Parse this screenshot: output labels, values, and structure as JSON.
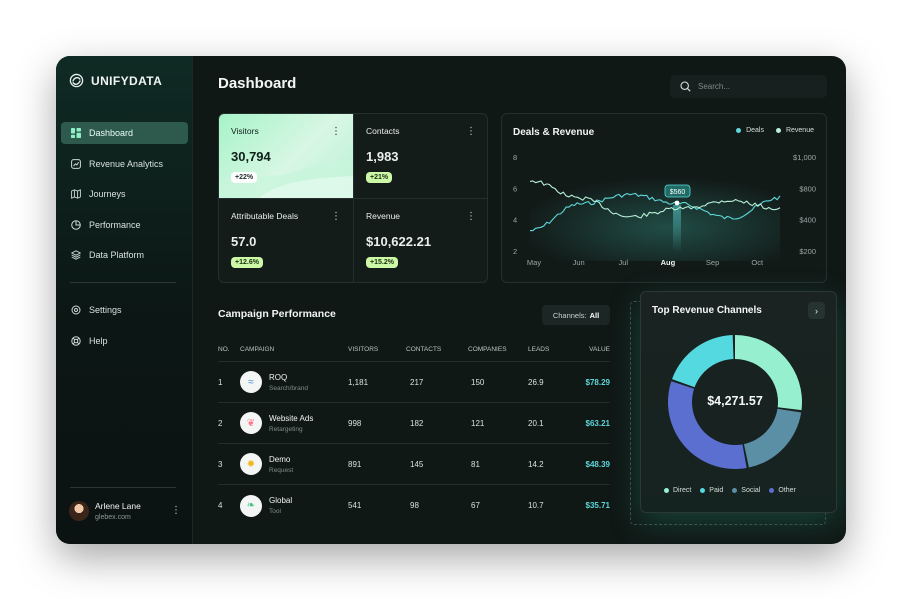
{
  "brand": {
    "name": "UNIFYDATA",
    "logo_icon": "knot-logo-icon"
  },
  "sidebar": {
    "nav": [
      {
        "label": "Dashboard",
        "icon": "grid-icon",
        "active": true
      },
      {
        "label": "Revenue Analytics",
        "icon": "chart-icon",
        "active": false
      },
      {
        "label": "Journeys",
        "icon": "map-icon",
        "active": false
      },
      {
        "label": "Performance",
        "icon": "pie-icon",
        "active": false
      },
      {
        "label": "Data Platform",
        "icon": "layers-icon",
        "active": false
      }
    ],
    "secondary": [
      {
        "label": "Settings",
        "icon": "gear-icon"
      },
      {
        "label": "Help",
        "icon": "help-icon"
      }
    ],
    "user": {
      "name": "Arlene Lane",
      "email": "glebex.com"
    }
  },
  "header": {
    "title": "Dashboard",
    "search_placeholder": "Search..."
  },
  "stats": [
    {
      "label": "Visitors",
      "value": "30,794",
      "badge": "+22%"
    },
    {
      "label": "Contacts",
      "value": "1,983",
      "badge": "+21%"
    },
    {
      "label": "Attributable Deals",
      "value": "57.0",
      "badge": "+12.6%"
    },
    {
      "label": "Revenue",
      "value": "$10,622.21",
      "badge": "+15.2%"
    }
  ],
  "deals_chart": {
    "title": "Deals & Revenue",
    "legend": {
      "deals": "Deals",
      "revenue": "Revenue"
    },
    "colors": {
      "deals": "#5ed8dc",
      "revenue": "#b8f0d8"
    },
    "y_left_ticks": [
      "8",
      "6",
      "4",
      "2"
    ],
    "y_right_ticks": [
      "$1,000",
      "$800",
      "$400",
      "$200"
    ],
    "x_ticks": [
      "May",
      "Jun",
      "Jul",
      "Aug",
      "Sep",
      "Oct"
    ],
    "highlight_label": "$560"
  },
  "chart_data": {
    "type": "line",
    "title": "Deals & Revenue",
    "x": [
      "May",
      "Jun",
      "Jul",
      "Aug",
      "Sep",
      "Oct"
    ],
    "series": [
      {
        "name": "Deals",
        "values": [
          3.3,
          5.0,
          5.6,
          5.0,
          4.1,
          5.4
        ]
      },
      {
        "name": "Revenue",
        "values": [
          800,
          650,
          490,
          560,
          630,
          560
        ]
      }
    ],
    "ylim_left": [
      2,
      8
    ],
    "ylim_right": [
      200,
      1000
    ]
  },
  "campaign": {
    "title": "Campaign Performance",
    "filter_label": "Channels:",
    "filter_value": "All",
    "columns": [
      "NO.",
      "CAMPAIGN",
      "VISITORS",
      "CONTACTS",
      "COMPANIES",
      "LEADS",
      "VALUE"
    ],
    "rows": [
      {
        "no": "1",
        "name": "ROQ",
        "sub": "Search/brand",
        "visitors": "1,181",
        "contacts": "217",
        "companies": "150",
        "leads": "26.9",
        "value": "$78.29",
        "logo_color": "#3d8bd9",
        "logo_glyph": "≈"
      },
      {
        "no": "2",
        "name": "Website Ads",
        "sub": "Retargeting",
        "visitors": "998",
        "contacts": "182",
        "companies": "121",
        "leads": "20.1",
        "value": "$63.21",
        "logo_color": "#ff7a8a",
        "logo_glyph": "❦"
      },
      {
        "no": "3",
        "name": "Demo",
        "sub": "Request",
        "visitors": "891",
        "contacts": "145",
        "companies": "81",
        "leads": "14.2",
        "value": "$48.39",
        "logo_color": "#f5b521",
        "logo_glyph": "✹"
      },
      {
        "no": "4",
        "name": "Global",
        "sub": "Tool",
        "visitors": "541",
        "contacts": "98",
        "companies": "67",
        "leads": "10.7",
        "value": "$35.71",
        "logo_color": "#3cc27a",
        "logo_glyph": "❧"
      }
    ]
  },
  "revenue_channels": {
    "title": "Top Revenue Channels",
    "total": "$4,271.57",
    "legend": [
      {
        "label": "Direct",
        "color": "#96f0cf"
      },
      {
        "label": "Paid",
        "color": "#55d9e0"
      },
      {
        "label": "Social",
        "color": "#5b8fa6"
      },
      {
        "label": "Other",
        "color": "#5b6fd0"
      }
    ]
  }
}
